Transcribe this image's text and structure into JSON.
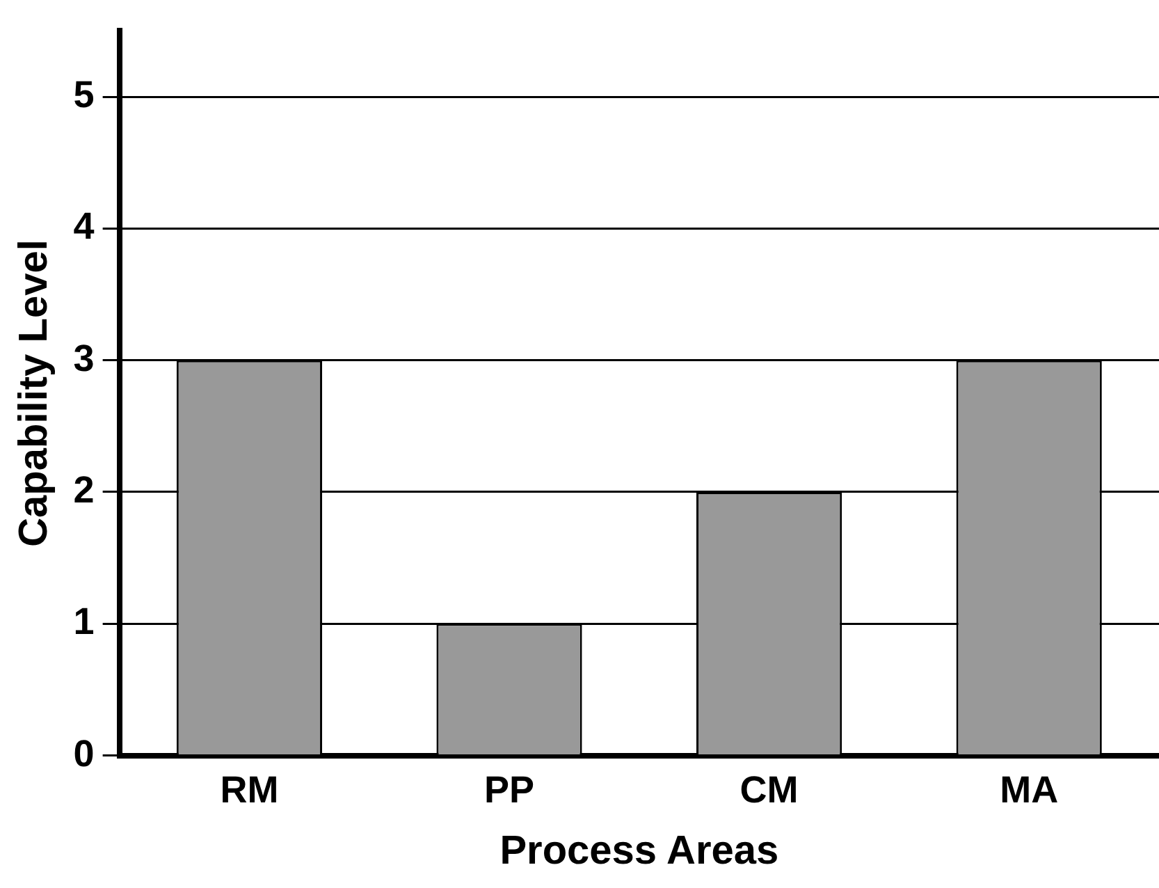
{
  "chart_data": {
    "type": "bar",
    "xlabel": "Process Areas",
    "ylabel": "Capability Level",
    "categories": [
      "RM",
      "PP",
      "CM",
      "MA"
    ],
    "values": [
      3,
      1,
      2,
      3
    ],
    "color": "#999999",
    "ylim": [
      0,
      5.5
    ],
    "yticks": [
      0,
      1,
      2,
      3,
      4,
      5
    ],
    "grid": "y",
    "legend": false
  }
}
